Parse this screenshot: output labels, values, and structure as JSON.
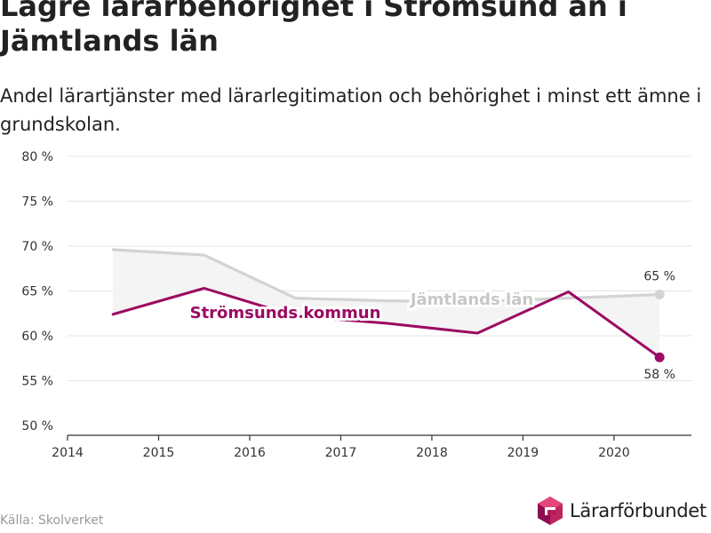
{
  "title": "Lägre lärarbehörighet i Strömsund än i Jämtlands län",
  "subtitle": "Andel lärartjänster med lärarlegitimation och behörighet i minst ett ämne i grundskolan.",
  "source": "Källa: Skolverket",
  "logo_text": "Lärarförbundet",
  "colors": {
    "kommun": "#9b0a62",
    "lan": "#d3d3d3",
    "lan_label": "#c7c7c7",
    "band": "#f4f4f4",
    "grid": "#e4e4e4"
  },
  "chart_data": {
    "type": "line",
    "title": "Lägre lärarbehörighet i Strömsund än i Jämtlands län",
    "subtitle": "Andel lärartjänster med lärarlegitimation och behörighet i minst ett ämne i grundskolan.",
    "x": [
      2014.5,
      2015.5,
      2016.5,
      2017.5,
      2018.5,
      2019.5,
      2020.5
    ],
    "xlim": [
      2014,
      2020.85
    ],
    "ylim": [
      50,
      80
    ],
    "x_ticks": [
      2014,
      2015,
      2016,
      2017,
      2018,
      2019,
      2020
    ],
    "x_tick_labels": [
      "2014",
      "2015",
      "2016",
      "2017",
      "2018",
      "2019",
      "2020"
    ],
    "y_ticks": [
      50,
      55,
      60,
      65,
      70,
      75,
      80
    ],
    "y_tick_labels": [
      "50 %",
      "55 %",
      "60 %",
      "65 %",
      "70 %",
      "75 %",
      "80 %"
    ],
    "grid": true,
    "series": [
      {
        "name": "Jämtlands län",
        "values": [
          69.6,
          69.0,
          64.2,
          63.9,
          63.8,
          64.2,
          64.6
        ],
        "end_label": "65 %"
      },
      {
        "name": "Strömsunds kommun",
        "values": [
          62.4,
          65.3,
          62.2,
          61.4,
          60.3,
          64.9,
          57.6
        ],
        "end_label": "58 %"
      }
    ]
  }
}
